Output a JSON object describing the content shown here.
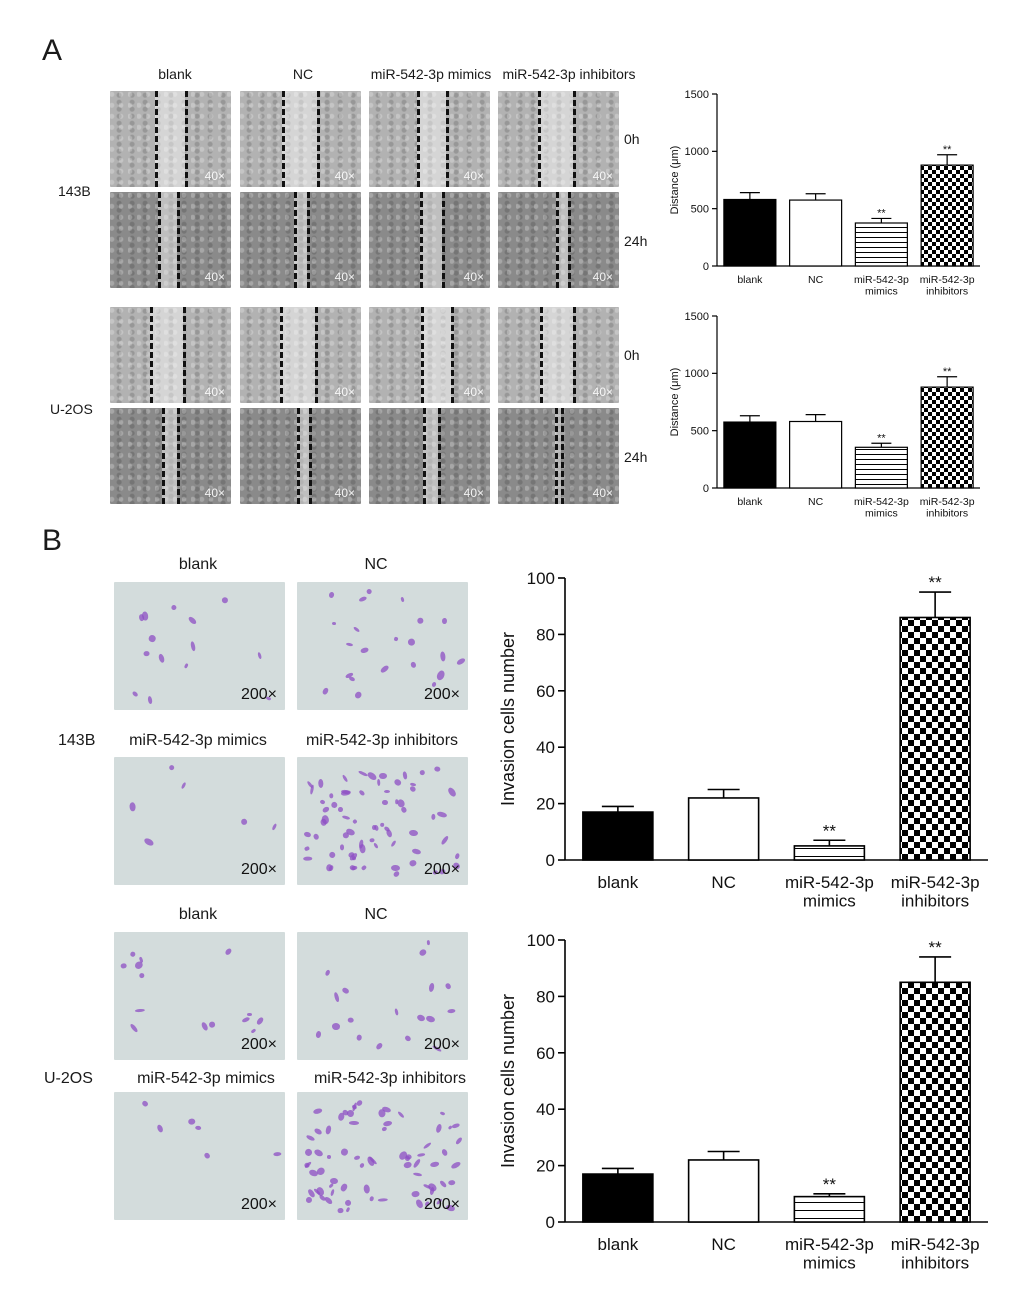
{
  "figure": {
    "panel_a_label": "A",
    "panel_b_label": "B"
  },
  "panel_a": {
    "columns": [
      "blank",
      "NC",
      "miR-542-3p mimics",
      "miR-542-3p inhibitors"
    ],
    "time_labels": [
      "0h",
      "24h"
    ],
    "cell_lines": [
      "143B",
      "U-2OS"
    ],
    "magnification": "40×"
  },
  "panel_b": {
    "row1_labels": [
      "blank",
      "NC"
    ],
    "row2_labels": [
      "miR-542-3p mimics",
      "miR-542-3p inhibitors"
    ],
    "cell_lines": [
      "143B",
      "U-2OS"
    ],
    "magnification": "200×"
  },
  "chart_data": [
    {
      "id": "a-143b",
      "type": "bar",
      "categories": [
        [
          "blank"
        ],
        [
          "NC"
        ],
        [
          "miR-542-3p",
          "mimics"
        ],
        [
          "miR-542-3p",
          "inhibitors"
        ]
      ],
      "values": [
        580,
        575,
        375,
        880
      ],
      "errors": [
        60,
        55,
        40,
        90
      ],
      "significance": [
        "",
        "",
        "**",
        "**"
      ],
      "ylabel": "Distance (μm)",
      "ylim": [
        0,
        1500
      ],
      "yticks": [
        0,
        500,
        1000,
        1500
      ],
      "patterns": [
        "solid",
        "white",
        "hlines",
        "checker"
      ]
    },
    {
      "id": "a-u2os",
      "type": "bar",
      "categories": [
        [
          "blank"
        ],
        [
          "NC"
        ],
        [
          "miR-542-3p",
          "mimics"
        ],
        [
          "miR-542-3p",
          "inhibitors"
        ]
      ],
      "values": [
        575,
        580,
        355,
        880
      ],
      "errors": [
        55,
        60,
        35,
        90
      ],
      "significance": [
        "",
        "",
        "**",
        "**"
      ],
      "ylabel": "Distance (μm)",
      "ylim": [
        0,
        1500
      ],
      "yticks": [
        0,
        500,
        1000,
        1500
      ],
      "patterns": [
        "solid",
        "white",
        "hlines",
        "checker"
      ]
    },
    {
      "id": "b-143b",
      "type": "bar",
      "categories": [
        [
          "blank"
        ],
        [
          "NC"
        ],
        [
          "miR-542-3p",
          "mimics"
        ],
        [
          "miR-542-3p",
          "inhibitors"
        ]
      ],
      "values": [
        17,
        22,
        5,
        86
      ],
      "errors": [
        2,
        3,
        2,
        9
      ],
      "significance": [
        "",
        "",
        "**",
        "**"
      ],
      "ylabel": "Invasion cells number",
      "ylim": [
        0,
        100
      ],
      "yticks": [
        0,
        20,
        40,
        60,
        80,
        100
      ],
      "patterns": [
        "solid",
        "white",
        "hlines",
        "checker"
      ]
    },
    {
      "id": "b-u2os",
      "type": "bar",
      "categories": [
        [
          "blank"
        ],
        [
          "NC"
        ],
        [
          "miR-542-3p",
          "mimics"
        ],
        [
          "miR-542-3p",
          "inhibitors"
        ]
      ],
      "values": [
        17,
        22,
        9,
        85
      ],
      "errors": [
        2,
        3,
        1,
        9
      ],
      "significance": [
        "",
        "",
        "**",
        "**"
      ],
      "ylabel": "Invasion cells number",
      "ylim": [
        0,
        100
      ],
      "yticks": [
        0,
        20,
        40,
        60,
        80,
        100
      ],
      "patterns": [
        "solid",
        "white",
        "hlines",
        "checker"
      ]
    }
  ]
}
